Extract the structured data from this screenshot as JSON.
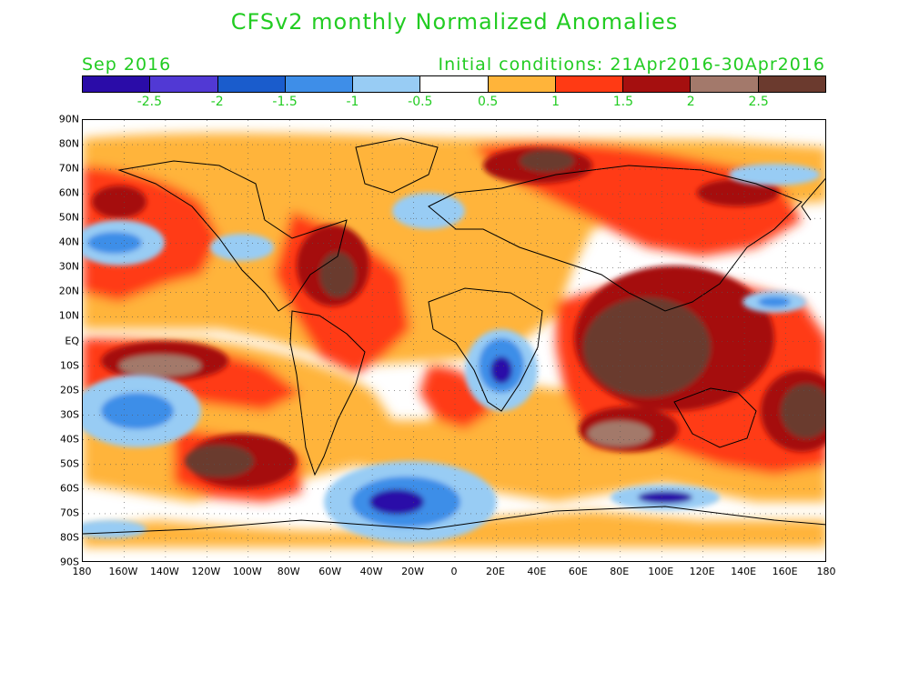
{
  "title": "CFSv2 monthly Normalized Anomalies",
  "month_label": "Sep 2016",
  "init_label": "Initial conditions: 21Apr2016-30Apr2016",
  "colorbar": {
    "colors": [
      "#2a0ca8",
      "#5139d4",
      "#1a5ccc",
      "#3e8ee8",
      "#98ccf4",
      "#ffffff",
      "#ffb43a",
      "#ff3a14",
      "#a50f0f",
      "#a3796b",
      "#6b3a2e"
    ],
    "ticks": [
      "-2.5",
      "-2",
      "-1.5",
      "-1",
      "-0.5",
      "0.5",
      "1",
      "1.5",
      "2",
      "2.5"
    ]
  },
  "axes": {
    "lat_labels": [
      "90N",
      "80N",
      "70N",
      "60N",
      "50N",
      "40N",
      "30N",
      "20N",
      "10N",
      "EQ",
      "10S",
      "20S",
      "30S",
      "40S",
      "50S",
      "60S",
      "70S",
      "80S",
      "90S"
    ],
    "lon_labels": [
      "180",
      "160W",
      "140W",
      "120W",
      "100W",
      "80W",
      "60W",
      "40W",
      "20W",
      "0",
      "20E",
      "40E",
      "60E",
      "80E",
      "100E",
      "120E",
      "140E",
      "160E",
      "180"
    ]
  },
  "anomaly_regions": [
    {
      "level": 1,
      "lon": -160,
      "lat": 62
    },
    {
      "level": 2,
      "lon": -135,
      "lat": -10
    },
    {
      "level": 2,
      "lon": -115,
      "lat": -45
    },
    {
      "level": 2,
      "lon": -60,
      "lat": 30
    },
    {
      "level": 2,
      "lon": 35,
      "lat": 72
    },
    {
      "level": 2,
      "lon": 95,
      "lat": -5
    },
    {
      "level": 2,
      "lon": 80,
      "lat": -35
    },
    {
      "level": 2,
      "lon": 170,
      "lat": -30
    },
    {
      "level": -2,
      "lon": 20,
      "lat": -10
    },
    {
      "level": -2,
      "lon": -35,
      "lat": -62
    },
    {
      "level": -2,
      "lon": 95,
      "lat": -68
    },
    {
      "level": -1,
      "lon": -150,
      "lat": 38
    },
    {
      "level": -1,
      "lon": -150,
      "lat": -25
    }
  ]
}
